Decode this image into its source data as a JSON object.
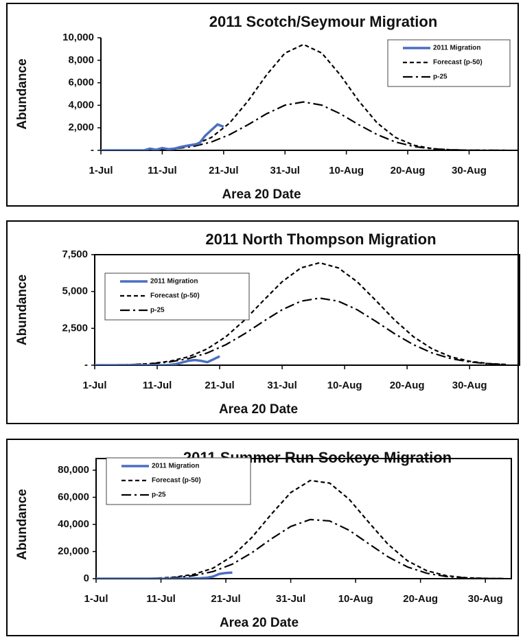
{
  "chart_data": [
    {
      "type": "line",
      "title": "2011 Scotch/Seymour Migration",
      "ylabel": "Abundance",
      "xlabel": "Area 20 Date",
      "xlim": [
        0,
        68
      ],
      "ylim": [
        0,
        10000
      ],
      "legend": "upper right",
      "frame": false,
      "xticks": [
        {
          "value": 0,
          "label": "1-Jul"
        },
        {
          "value": 10,
          "label": "11-Jul"
        },
        {
          "value": 20,
          "label": "21-Jul"
        },
        {
          "value": 30,
          "label": "31-Jul"
        },
        {
          "value": 40,
          "label": "10-Aug"
        },
        {
          "value": 50,
          "label": "20-Aug"
        },
        {
          "value": 60,
          "label": "30-Aug"
        }
      ],
      "yticks": [
        {
          "value": 0,
          "label": "-"
        },
        {
          "value": 2000,
          "label": "2,000"
        },
        {
          "value": 4000,
          "label": "4,000"
        },
        {
          "value": 6000,
          "label": "6,000"
        },
        {
          "value": 8000,
          "label": "8,000"
        },
        {
          "value": 10000,
          "label": "10,000"
        }
      ],
      "series": [
        {
          "name": "2011 Migration",
          "color": "#4a6fc0",
          "dash": "solid",
          "x": [
            0,
            1,
            2,
            3,
            4,
            5,
            6,
            7,
            8,
            9,
            10,
            11,
            12,
            13,
            14,
            15,
            16,
            17,
            18,
            19,
            20
          ],
          "values": [
            0,
            0,
            0,
            0,
            0,
            0,
            0,
            0,
            150,
            50,
            200,
            100,
            150,
            300,
            400,
            500,
            600,
            1300,
            1800,
            2300,
            2100
          ]
        },
        {
          "name": "Forecast (p-50)",
          "color": "#000000",
          "dash": "dash",
          "x": [
            0,
            3,
            6,
            9,
            12,
            15,
            18,
            21,
            24,
            27,
            30,
            33,
            36,
            39,
            42,
            45,
            48,
            51,
            54,
            57,
            60,
            63,
            66
          ],
          "values": [
            0,
            2,
            10,
            42,
            150,
            450,
            1140,
            2440,
            4400,
            6700,
            8640,
            9400,
            8640,
            6700,
            4400,
            2440,
            1140,
            450,
            150,
            42,
            10,
            2,
            0
          ]
        },
        {
          "name": "p-25",
          "color": "#000000",
          "dash": "dashdot",
          "x": [
            0,
            3,
            6,
            9,
            12,
            15,
            18,
            21,
            24,
            27,
            30,
            33,
            36,
            39,
            42,
            45,
            48,
            51,
            54,
            57,
            60,
            63,
            66
          ],
          "values": [
            1,
            4,
            14,
            48,
            137,
            342,
            740,
            1400,
            2280,
            3250,
            4010,
            4300,
            4010,
            3250,
            2280,
            1400,
            740,
            342,
            137,
            48,
            14,
            4,
            1
          ]
        }
      ]
    },
    {
      "type": "line",
      "title": "2011 North Thompson Migration",
      "ylabel": "Abundance",
      "xlabel": "Area 20 Date",
      "xlim": [
        0,
        68
      ],
      "ylim": [
        0,
        7500
      ],
      "legend": "upper left",
      "frame": true,
      "xticks": [
        {
          "value": 0,
          "label": "1-Jul"
        },
        {
          "value": 10,
          "label": "11-Jul"
        },
        {
          "value": 20,
          "label": "21-Jul"
        },
        {
          "value": 30,
          "label": "31-Jul"
        },
        {
          "value": 40,
          "label": "10-Aug"
        },
        {
          "value": 50,
          "label": "20-Aug"
        },
        {
          "value": 60,
          "label": "30-Aug"
        }
      ],
      "yticks": [
        {
          "value": 0,
          "label": "-"
        },
        {
          "value": 2500,
          "label": "2,500"
        },
        {
          "value": 5000,
          "label": "5,000"
        },
        {
          "value": 7500,
          "label": "7,500"
        }
      ],
      "series": [
        {
          "name": "2011 Migration",
          "color": "#4a6fc0",
          "dash": "solid",
          "x": [
            0,
            1,
            2,
            3,
            4,
            5,
            6,
            7,
            8,
            9,
            10,
            11,
            12,
            13,
            14,
            15,
            16,
            17,
            18,
            19,
            20
          ],
          "values": [
            0,
            0,
            0,
            0,
            0,
            0,
            0,
            0,
            0,
            0,
            0,
            0,
            20,
            80,
            180,
            300,
            350,
            300,
            200,
            400,
            600
          ]
        },
        {
          "name": "Forecast (p-50)",
          "color": "#000000",
          "dash": "dash",
          "x": [
            0,
            3,
            6,
            9,
            12,
            15,
            18,
            21,
            24,
            27,
            30,
            33,
            36,
            39,
            42,
            45,
            48,
            51,
            54,
            57,
            60,
            63,
            66
          ],
          "values": [
            4,
            14,
            42,
            111,
            264,
            566,
            1105,
            1932,
            3066,
            4387,
            5665,
            6603,
            6950,
            6603,
            5665,
            4387,
            3066,
            1932,
            1105,
            566,
            264,
            111,
            42
          ]
        },
        {
          "name": "p-25",
          "color": "#000000",
          "dash": "dashdot",
          "x": [
            0,
            3,
            6,
            9,
            12,
            15,
            18,
            21,
            24,
            27,
            30,
            33,
            36,
            39,
            42,
            45,
            48,
            51,
            54,
            57,
            60,
            63,
            66
          ],
          "values": [
            5,
            15,
            40,
            98,
            220,
            448,
            827,
            1393,
            2133,
            2971,
            3765,
            4341,
            4550,
            4341,
            3765,
            2971,
            2133,
            1393,
            827,
            448,
            220,
            98,
            40
          ]
        }
      ]
    },
    {
      "type": "line",
      "title": "2011 Summer Run Sockeye Migration",
      "ylabel": "Abundance",
      "xlabel": "Area 20 Date",
      "xlim": [
        0,
        64
      ],
      "ylim": [
        0,
        80000
      ],
      "legend": "upper left",
      "frame": true,
      "xticks": [
        {
          "value": 0,
          "label": "1-Jul"
        },
        {
          "value": 10,
          "label": "11-Jul"
        },
        {
          "value": 20,
          "label": "21-Jul"
        },
        {
          "value": 30,
          "label": "31-Jul"
        },
        {
          "value": 40,
          "label": "10-Aug"
        },
        {
          "value": 50,
          "label": "20-Aug"
        },
        {
          "value": 60,
          "label": "30-Aug"
        }
      ],
      "yticks": [
        0,
        {
          "value": 20000,
          "label": "20,000"
        },
        {
          "value": 40000,
          "label": "40,000"
        },
        {
          "value": 60000,
          "label": "60,000"
        },
        {
          "value": 80000,
          "label": "80,000"
        }
      ],
      "series": [
        {
          "name": "2011 Migration",
          "color": "#4a6fc0",
          "dash": "solid",
          "x": [
            0,
            1,
            2,
            3,
            4,
            5,
            6,
            7,
            8,
            9,
            10,
            11,
            12,
            13,
            14,
            15,
            16,
            17,
            18,
            19,
            20,
            21
          ],
          "values": [
            0,
            0,
            0,
            0,
            0,
            0,
            0,
            0,
            0,
            0,
            0,
            0,
            0,
            0,
            100,
            200,
            300,
            600,
            1500,
            3500,
            4200,
            4500
          ]
        },
        {
          "name": "Forecast (p-50)",
          "color": "#000000",
          "dash": "dash",
          "x": [
            0,
            3,
            6,
            9,
            12,
            15,
            18,
            21,
            24,
            27,
            30,
            33,
            36,
            39,
            42,
            45,
            48,
            51,
            54,
            57,
            60,
            63
          ],
          "values": [
            0,
            16,
            75,
            305,
            1040,
            3070,
            7690,
            16600,
            30400,
            47500,
            63500,
            72400,
            70500,
            58600,
            41700,
            25300,
            13100,
            5770,
            2180,
            706,
            195,
            45
          ]
        },
        {
          "name": "p-25",
          "color": "#000000",
          "dash": "dashdot",
          "x": [
            0,
            3,
            6,
            9,
            12,
            15,
            18,
            21,
            24,
            27,
            30,
            33,
            36,
            39,
            42,
            45,
            48,
            51,
            54,
            57,
            60,
            63
          ],
          "values": [
            3,
            15,
            64,
            241,
            780,
            2170,
            5230,
            10700,
            19100,
            29300,
            38500,
            43600,
            42600,
            35700,
            25800,
            16100,
            8600,
            3960,
            1570,
            536,
            158,
            40
          ]
        }
      ]
    }
  ]
}
